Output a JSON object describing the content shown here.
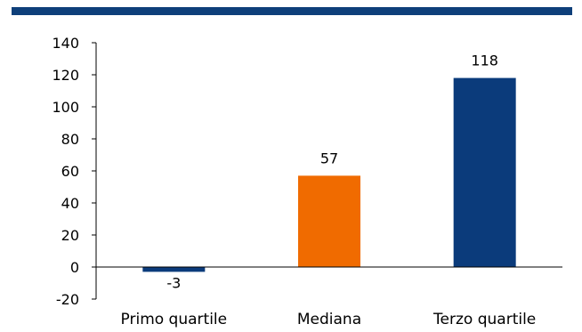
{
  "colors": {
    "band": "#0e3f7a",
    "axis": "#000000",
    "text": "#000000"
  },
  "chart_data": {
    "type": "bar",
    "title": "",
    "xlabel": "",
    "ylabel": "",
    "categories": [
      "Primo quartile",
      "Mediana",
      "Terzo quartile"
    ],
    "values": [
      -3,
      57,
      118
    ],
    "data_labels": [
      "-3",
      "57",
      "118"
    ],
    "bar_colors": [
      "#0b3b7b",
      "#f06b00",
      "#0b3b7b"
    ],
    "ylim": [
      -20,
      140
    ],
    "yticks": [
      -20,
      0,
      20,
      40,
      60,
      80,
      100,
      120,
      140
    ],
    "ytick_labels": [
      "-20",
      "0",
      "20",
      "40",
      "60",
      "80",
      "100",
      "120",
      "140"
    ],
    "grid": false,
    "legend": "none"
  }
}
